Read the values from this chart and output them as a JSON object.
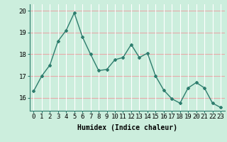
{
  "x": [
    0,
    1,
    2,
    3,
    4,
    5,
    6,
    7,
    8,
    9,
    10,
    11,
    12,
    13,
    14,
    15,
    16,
    17,
    18,
    19,
    20,
    21,
    22,
    23
  ],
  "y": [
    16.3,
    17.0,
    17.5,
    18.6,
    19.1,
    19.9,
    18.8,
    18.0,
    17.25,
    17.3,
    17.75,
    17.85,
    18.45,
    17.85,
    18.05,
    17.0,
    16.35,
    15.95,
    15.75,
    16.45,
    16.7,
    16.45,
    15.75,
    15.55
  ],
  "line_color": "#2e7d6e",
  "marker": "D",
  "marker_size": 2.0,
  "line_width": 1.0,
  "bg_color": "#cceedd",
  "hgrid_color": "#e8aaaa",
  "vgrid_color": "#ffffff",
  "xlabel": "Humidex (Indice chaleur)",
  "xlabel_fontsize": 7,
  "xtick_labels": [
    "0",
    "1",
    "2",
    "3",
    "4",
    "5",
    "6",
    "7",
    "8",
    "9",
    "10",
    "11",
    "12",
    "13",
    "14",
    "15",
    "16",
    "17",
    "18",
    "19",
    "20",
    "21",
    "22",
    "23"
  ],
  "ylim": [
    15.4,
    20.3
  ],
  "yticks": [
    16,
    17,
    18,
    19,
    20
  ],
  "tick_fontsize": 6.5
}
